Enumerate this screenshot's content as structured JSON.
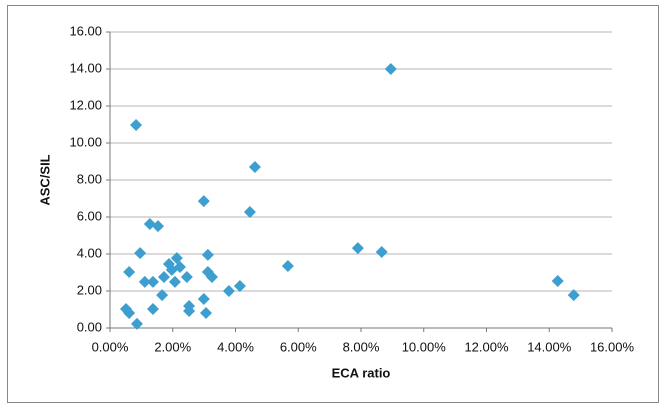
{
  "chart_data": {
    "type": "scatter",
    "xlabel": "ECA ratio",
    "ylabel": "ASC/SIL",
    "color": "#3d9fd0",
    "grid": true,
    "xlim": [
      0,
      16
    ],
    "ylim": [
      0,
      16
    ],
    "xticks": [
      {
        "value": 0,
        "label": "0.00%"
      },
      {
        "value": 2,
        "label": "2.00%"
      },
      {
        "value": 4,
        "label": "4.00%"
      },
      {
        "value": 6,
        "label": "6.00%"
      },
      {
        "value": 8,
        "label": "8.00%"
      },
      {
        "value": 10,
        "label": "10.00%"
      },
      {
        "value": 12,
        "label": "12.00%"
      },
      {
        "value": 14,
        "label": "14.00%"
      },
      {
        "value": 16,
        "label": "16.00%"
      }
    ],
    "yticks": [
      {
        "value": 0,
        "label": "0.00"
      },
      {
        "value": 2,
        "label": "2.00"
      },
      {
        "value": 4,
        "label": "4.00"
      },
      {
        "value": 6,
        "label": "6.00"
      },
      {
        "value": 8,
        "label": "8.00"
      },
      {
        "value": 10,
        "label": "10.00"
      },
      {
        "value": 12,
        "label": "12.00"
      },
      {
        "value": 14,
        "label": "14.00"
      },
      {
        "value": 16,
        "label": "16.00"
      }
    ],
    "x": [
      0.51,
      0.61,
      0.61,
      0.83,
      0.86,
      0.96,
      1.11,
      1.27,
      1.37,
      1.37,
      1.53,
      1.66,
      1.72,
      1.88,
      1.97,
      2.07,
      2.13,
      2.23,
      2.45,
      2.52,
      2.52,
      2.99,
      2.99,
      3.06,
      3.12,
      3.12,
      3.25,
      3.79,
      4.14,
      4.46,
      4.62,
      5.67,
      7.9,
      8.66,
      8.95,
      14.27,
      14.78
    ],
    "y": [
      1.03,
      0.81,
      3.03,
      10.97,
      0.22,
      4.05,
      2.49,
      5.62,
      2.49,
      1.03,
      5.51,
      1.78,
      2.76,
      3.46,
      3.14,
      2.49,
      3.78,
      3.3,
      2.76,
      1.19,
      0.92,
      6.86,
      1.57,
      0.81,
      3.95,
      3.03,
      2.76,
      2.0,
      2.27,
      6.27,
      8.7,
      3.35,
      4.32,
      4.11,
      14.0,
      2.54,
      1.78
    ]
  }
}
